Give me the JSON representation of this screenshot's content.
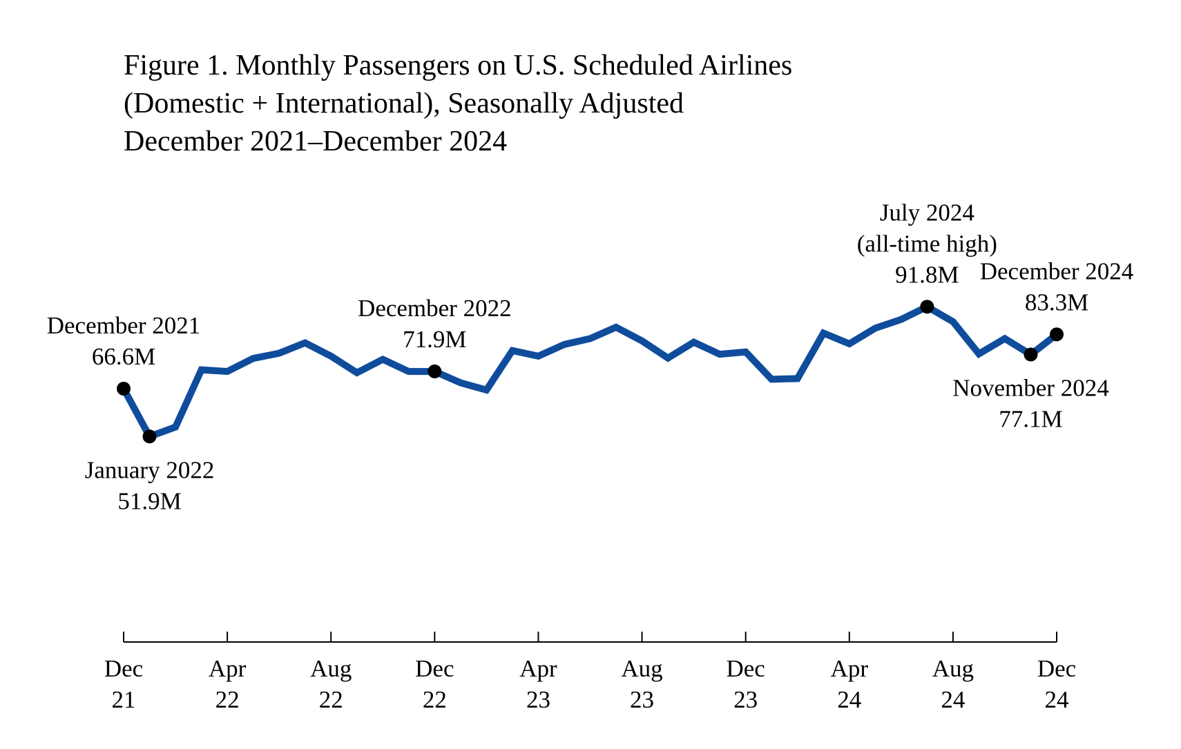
{
  "chart_data": {
    "type": "line",
    "title_lines": [
      "Figure 1. Monthly Passengers on U.S. Scheduled Airlines",
      "(Domestic + International), Seasonally Adjusted",
      "December 2021–December 2024"
    ],
    "xlabel": "",
    "ylabel": "",
    "ylim": [
      20,
      120
    ],
    "grid": false,
    "units": "millions of passengers",
    "x": [
      "Dec 2021",
      "Jan 2022",
      "Feb 2022",
      "Mar 2022",
      "Apr 2022",
      "May 2022",
      "Jun 2022",
      "Jul 2022",
      "Aug 2022",
      "Sep 2022",
      "Oct 2022",
      "Nov 2022",
      "Dec 2022",
      "Jan 2023",
      "Feb 2023",
      "Mar 2023",
      "Apr 2023",
      "May 2023",
      "Jun 2023",
      "Jul 2023",
      "Aug 2023",
      "Sep 2023",
      "Oct 2023",
      "Nov 2023",
      "Dec 2023",
      "Jan 2024",
      "Feb 2024",
      "Mar 2024",
      "Apr 2024",
      "May 2024",
      "Jun 2024",
      "Jul 2024",
      "Aug 2024",
      "Sep 2024",
      "Oct 2024",
      "Nov 2024",
      "Dec 2024"
    ],
    "series": [
      {
        "name": "Monthly passengers (millions)",
        "color": "#0f4c9c",
        "values": [
          66.6,
          51.9,
          54.8,
          72.4,
          71.9,
          75.9,
          77.5,
          80.7,
          76.6,
          71.5,
          75.6,
          71.9,
          71.9,
          68.4,
          66.2,
          78.3,
          76.6,
          80.2,
          82.0,
          85.5,
          81.3,
          76.0,
          80.9,
          77.2,
          77.9,
          69.5,
          69.7,
          83.7,
          80.4,
          85.2,
          87.9,
          91.8,
          87.2,
          77.3,
          82.0,
          77.1,
          83.3
        ]
      }
    ],
    "x_ticks": [
      {
        "index": 0,
        "month": "Dec",
        "year": "21"
      },
      {
        "index": 4,
        "month": "Apr",
        "year": "22"
      },
      {
        "index": 8,
        "month": "Aug",
        "year": "22"
      },
      {
        "index": 12,
        "month": "Dec",
        "year": "22"
      },
      {
        "index": 16,
        "month": "Apr",
        "year": "23"
      },
      {
        "index": 20,
        "month": "Aug",
        "year": "23"
      },
      {
        "index": 24,
        "month": "Dec",
        "year": "23"
      },
      {
        "index": 28,
        "month": "Apr",
        "year": "24"
      },
      {
        "index": 32,
        "month": "Aug",
        "year": "24"
      },
      {
        "index": 36,
        "month": "Dec",
        "year": "24"
      }
    ],
    "annotations": [
      {
        "index": 0,
        "lines": [
          "December 2021",
          "66.6M"
        ],
        "placement": "above"
      },
      {
        "index": 1,
        "lines": [
          "January 2022",
          "51.9M"
        ],
        "placement": "below"
      },
      {
        "index": 12,
        "lines": [
          "December 2022",
          "71.9M"
        ],
        "placement": "above"
      },
      {
        "index": 31,
        "lines": [
          "July 2024",
          "(all-time high)",
          "91.8M"
        ],
        "placement": "above"
      },
      {
        "index": 35,
        "lines": [
          "November 2024",
          "77.1M"
        ],
        "placement": "below"
      },
      {
        "index": 36,
        "lines": [
          "December 2024",
          "83.3M"
        ],
        "placement": "above"
      }
    ],
    "marker_color": "#000000"
  }
}
